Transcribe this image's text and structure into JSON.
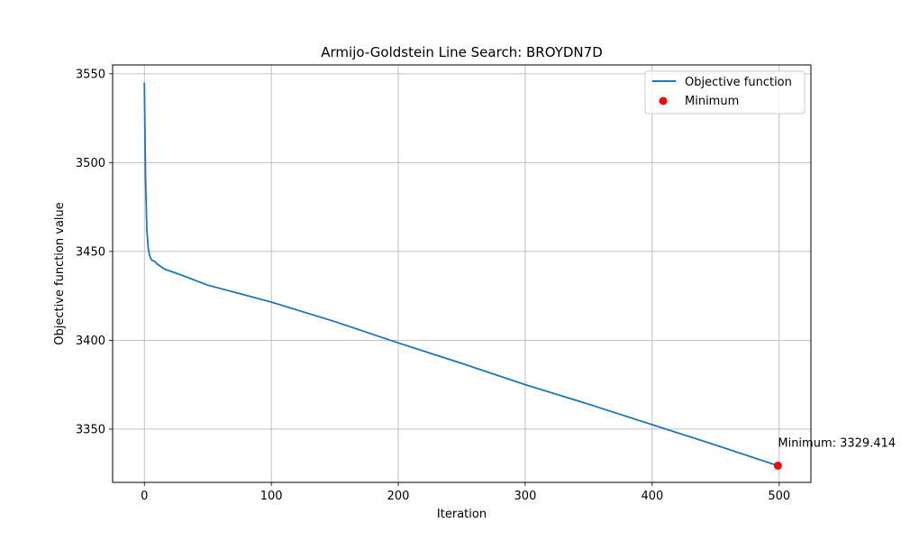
{
  "chart_data": {
    "type": "line",
    "title": "Armijo-Goldstein Line Search: BROYDN7D",
    "xlabel": "Iteration",
    "ylabel": "Objective function value",
    "xlim": [
      -25,
      525
    ],
    "ylim": [
      3320,
      3555
    ],
    "x_ticks": [
      0,
      100,
      200,
      300,
      400,
      500
    ],
    "y_ticks": [
      3350,
      3400,
      3450,
      3500,
      3550
    ],
    "grid": true,
    "legend_position": "top-right",
    "series": [
      {
        "name": "Objective function",
        "color": "#1f77b4",
        "x": [
          0,
          1,
          2,
          3,
          4,
          5,
          6,
          8,
          10,
          12,
          14,
          16,
          20,
          30,
          50,
          100,
          150,
          200,
          250,
          300,
          350,
          400,
          450,
          499
        ],
        "y": [
          3545,
          3490,
          3462,
          3452,
          3448,
          3446,
          3445,
          3444.5,
          3443,
          3442,
          3441,
          3440,
          3439,
          3436.5,
          3431,
          3421.5,
          3410.5,
          3398.5,
          3387,
          3375,
          3364,
          3352.5,
          3341,
          3329.4
        ]
      },
      {
        "name": "Minimum",
        "color": "#ff0000",
        "type": "scatter",
        "x": [
          499
        ],
        "y": [
          3329.414
        ]
      }
    ],
    "annotations": [
      {
        "text": "Minimum: 3329.414",
        "x": 499,
        "y": 3329.414
      }
    ]
  }
}
